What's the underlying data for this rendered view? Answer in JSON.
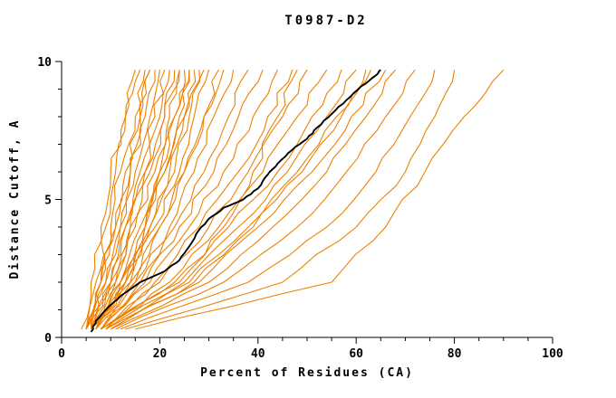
{
  "chart_data": {
    "type": "line",
    "title": "T0987-D2",
    "x_axis": {
      "label": "Percent of Residues (CA)",
      "ticks": [
        0,
        20,
        40,
        60,
        80,
        100
      ],
      "minor_step": 5,
      "range": [
        0,
        100
      ]
    },
    "y_axis": {
      "label": "Distance Cutoff, A",
      "ticks": [
        0,
        5,
        10
      ],
      "minor_step": 1,
      "range": [
        0,
        10
      ]
    },
    "colors": {
      "model": "#ee8000",
      "reference": "#000000",
      "axis": "#000000",
      "background": "#ffffff"
    },
    "legend": "none",
    "grid": "off",
    "y_anchors": [
      0.3,
      2,
      4,
      6,
      8,
      9.7
    ],
    "models": [
      {
        "xs": [
          5,
          7,
          9,
          11,
          13,
          15
        ]
      },
      {
        "xs": [
          4,
          6,
          8,
          10,
          13,
          16
        ]
      },
      {
        "xs": [
          5,
          8,
          10,
          12,
          15,
          17
        ]
      },
      {
        "xs": [
          6,
          8,
          11,
          13,
          16,
          18
        ]
      },
      {
        "xs": [
          5,
          9,
          12,
          14,
          17,
          19
        ]
      },
      {
        "xs": [
          6,
          9,
          12,
          15,
          18,
          20
        ]
      },
      {
        "xs": [
          6,
          10,
          13,
          16,
          19,
          21
        ]
      },
      {
        "xs": [
          5,
          10,
          14,
          17,
          20,
          22
        ]
      },
      {
        "xs": [
          6,
          11,
          14,
          18,
          21,
          23
        ]
      },
      {
        "xs": [
          7,
          11,
          15,
          19,
          22,
          24
        ]
      },
      {
        "xs": [
          6,
          12,
          16,
          20,
          23,
          25
        ]
      },
      {
        "xs": [
          7,
          12,
          17,
          21,
          24,
          26
        ]
      },
      {
        "xs": [
          7,
          13,
          18,
          22,
          25,
          27
        ]
      },
      {
        "xs": [
          6,
          13,
          18,
          23,
          26,
          28
        ]
      },
      {
        "xs": [
          6,
          12,
          17,
          21,
          25,
          29
        ]
      },
      {
        "xs": [
          7,
          14,
          19,
          24,
          27,
          30
        ]
      },
      {
        "xs": [
          8,
          15,
          20,
          25,
          29,
          32
        ]
      },
      {
        "xs": [
          7,
          14,
          20,
          25,
          29,
          33
        ]
      },
      {
        "xs": [
          5,
          8,
          11,
          14,
          16,
          18
        ]
      },
      {
        "xs": [
          6,
          10,
          13,
          17,
          21,
          24
        ]
      },
      {
        "xs": [
          7,
          13,
          17,
          20,
          23,
          26
        ]
      },
      {
        "xs": [
          7,
          15,
          22,
          27,
          31,
          35
        ]
      },
      {
        "xs": [
          8,
          16,
          23,
          29,
          34,
          38
        ]
      },
      {
        "xs": [
          7,
          17,
          24,
          31,
          36,
          41
        ]
      },
      {
        "xs": [
          8,
          18,
          26,
          33,
          39,
          44
        ]
      },
      {
        "xs": [
          9,
          19,
          28,
          36,
          42,
          47
        ]
      },
      {
        "xs": [
          8,
          24,
          33,
          39,
          44,
          48
        ]
      },
      {
        "xs": [
          8,
          20,
          30,
          38,
          45,
          50
        ]
      },
      {
        "xs": [
          9,
          22,
          32,
          41,
          48,
          54
        ]
      },
      {
        "xs": [
          8,
          23,
          34,
          44,
          51,
          57
        ]
      },
      {
        "xs": [
          9,
          25,
          36,
          46,
          54,
          60
        ]
      },
      {
        "xs": [
          10,
          27,
          39,
          49,
          57,
          62
        ]
      },
      {
        "xs": [
          10,
          26,
          38,
          48,
          56,
          63
        ]
      },
      {
        "xs": [
          9,
          28,
          40,
          51,
          59,
          66
        ]
      },
      {
        "xs": [
          10,
          30,
          43,
          54,
          62,
          68
        ]
      },
      {
        "xs": [
          11,
          33,
          48,
          58,
          66,
          72
        ]
      },
      {
        "xs": [
          12,
          38,
          54,
          64,
          71,
          76
        ]
      },
      {
        "xs": [
          13,
          45,
          60,
          70,
          76,
          80
        ]
      },
      {
        "xs": [
          15,
          55,
          66,
          74,
          82,
          90
        ]
      }
    ],
    "reference": {
      "points": [
        [
          6,
          0.2
        ],
        [
          7,
          0.6
        ],
        [
          9,
          1.0
        ],
        [
          12,
          1.5
        ],
        [
          16,
          2.0
        ],
        [
          21,
          2.4
        ],
        [
          24,
          2.8
        ],
        [
          26,
          3.3
        ],
        [
          28,
          3.9
        ],
        [
          30,
          4.3
        ],
        [
          33,
          4.7
        ],
        [
          37,
          5.0
        ],
        [
          40,
          5.4
        ],
        [
          42,
          5.9
        ],
        [
          44,
          6.3
        ],
        [
          47,
          6.8
        ],
        [
          50,
          7.2
        ],
        [
          52,
          7.6
        ],
        [
          55,
          8.1
        ],
        [
          58,
          8.6
        ],
        [
          61,
          9.1
        ],
        [
          64,
          9.5
        ],
        [
          65,
          9.7
        ]
      ]
    }
  }
}
